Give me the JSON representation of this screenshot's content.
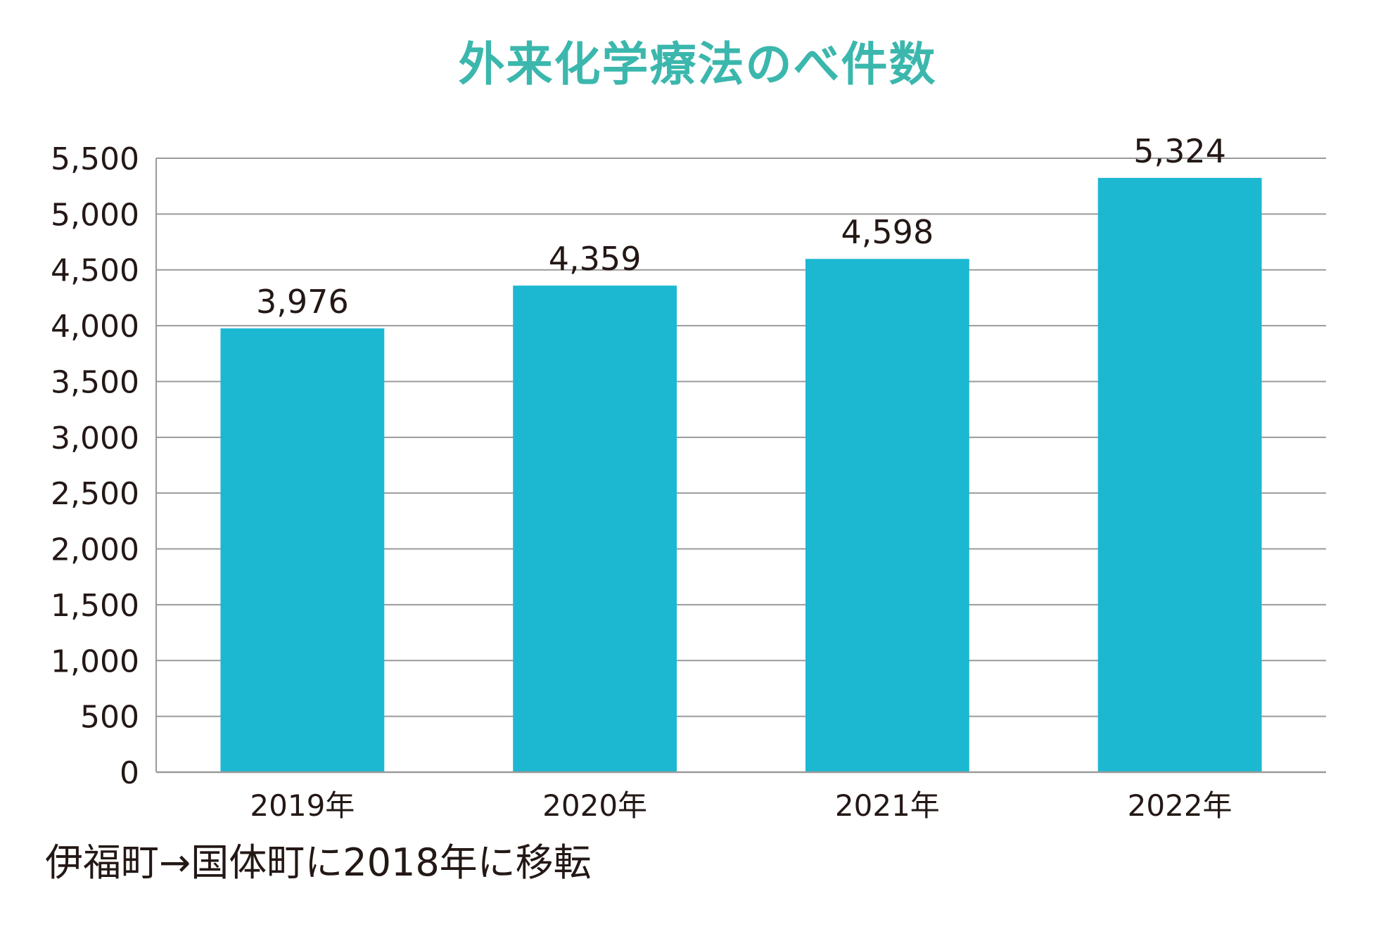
{
  "colors": {
    "title": "#3bb7ad",
    "bar": "#1cb8d2",
    "grid": "#9a9a9a",
    "text": "#231815"
  },
  "chart_data": {
    "type": "bar",
    "title": "外来化学療法のべ件数",
    "categories": [
      "2019年",
      "2020年",
      "2021年",
      "2022年"
    ],
    "values": [
      3976,
      4359,
      4598,
      5324
    ],
    "value_labels": [
      "3,976",
      "4,359",
      "4,598",
      "5,324"
    ],
    "ylim": [
      0,
      5500
    ],
    "yticks": [
      0,
      500,
      1000,
      1500,
      2000,
      2500,
      3000,
      3500,
      4000,
      4500,
      5000,
      5500
    ],
    "ytick_labels": [
      "0",
      "500",
      "1,000",
      "1,500",
      "2,000",
      "2,500",
      "3,000",
      "3,500",
      "4,000",
      "4,500",
      "5,000",
      "5,500"
    ],
    "grid": true,
    "legend": "none"
  },
  "footnote": "伊福町→国体町に2018年に移転"
}
